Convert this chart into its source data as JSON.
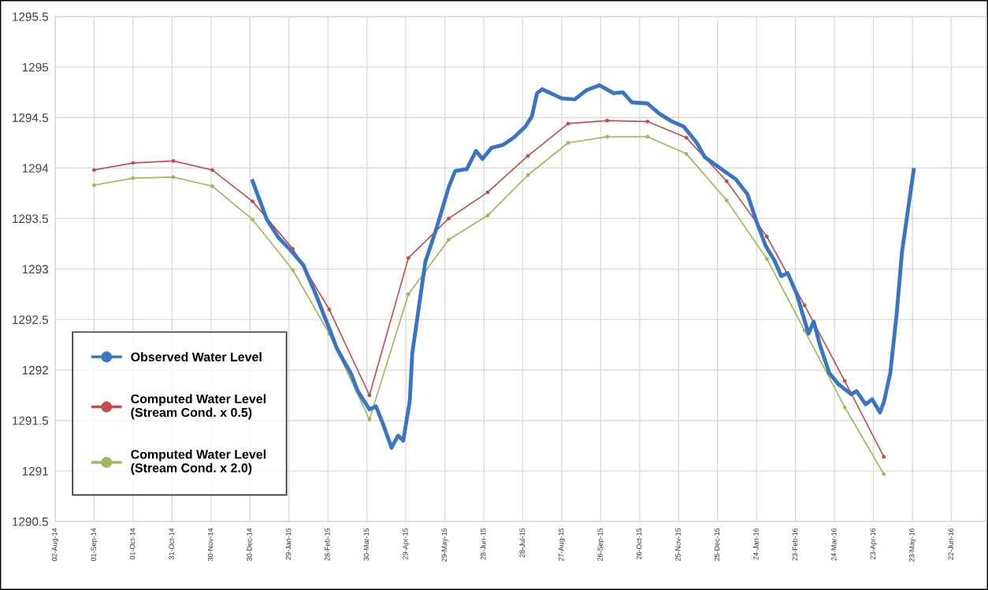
{
  "chart_data": {
    "type": "line",
    "ylim": [
      1290.5,
      1295.5
    ],
    "yticks": [
      1290.5,
      1291,
      1291.5,
      1292,
      1292.5,
      1293,
      1293.5,
      1294,
      1294.5,
      1295,
      1295.5
    ],
    "xlim": [
      "2014-08-02",
      "2016-07-19"
    ],
    "xticks": [
      {
        "value": "2014-08-02",
        "label": "02-Aug-14"
      },
      {
        "value": "2014-09-01",
        "label": "01-Sep-14"
      },
      {
        "value": "2014-10-01",
        "label": "01-Oct-14"
      },
      {
        "value": "2014-10-31",
        "label": "31-Oct-14"
      },
      {
        "value": "2014-11-30",
        "label": "30-Nov-14"
      },
      {
        "value": "2014-12-30",
        "label": "30-Dec-14"
      },
      {
        "value": "2015-01-29",
        "label": "29-Jan-15"
      },
      {
        "value": "2015-02-28",
        "label": "28-Feb-15"
      },
      {
        "value": "2015-03-30",
        "label": "30-Mar-15"
      },
      {
        "value": "2015-04-29",
        "label": "29-Apr-15"
      },
      {
        "value": "2015-05-29",
        "label": "29-May-15"
      },
      {
        "value": "2015-06-28",
        "label": "28-Jun-15"
      },
      {
        "value": "2015-07-28",
        "label": "28-Jul-15"
      },
      {
        "value": "2015-08-27",
        "label": "27-Aug-15"
      },
      {
        "value": "2015-09-26",
        "label": "26-Sep-15"
      },
      {
        "value": "2015-10-26",
        "label": "26-Oct-15"
      },
      {
        "value": "2015-11-25",
        "label": "25-Nov-15"
      },
      {
        "value": "2015-12-25",
        "label": "25-Dec-15"
      },
      {
        "value": "2016-01-24",
        "label": "24-Jan-16"
      },
      {
        "value": "2016-02-23",
        "label": "23-Feb-16"
      },
      {
        "value": "2016-03-24",
        "label": "24-Mar-16"
      },
      {
        "value": "2016-04-23",
        "label": "23-Apr-16"
      },
      {
        "value": "2016-05-23",
        "label": "23-May-16"
      },
      {
        "value": "2016-06-22",
        "label": "22-Jun-16"
      }
    ],
    "grid": true,
    "legend": "bottom left",
    "series": [
      {
        "name": "Observed Water Level",
        "color": "#3a75c4",
        "marker": "none",
        "x": [
          "2015-01-01",
          "2015-01-12",
          "2015-01-21",
          "2015-01-30",
          "2015-02-09",
          "2015-02-18",
          "2015-03-02",
          "2015-03-07",
          "2015-03-18",
          "2015-03-23",
          "2015-04-01",
          "2015-04-06",
          "2015-04-11",
          "2015-04-18",
          "2015-04-23",
          "2015-04-27",
          "2015-05-02",
          "2015-05-04",
          "2015-05-14",
          "2015-05-23",
          "2015-06-01",
          "2015-06-06",
          "2015-06-15",
          "2015-06-22",
          "2015-06-27",
          "2015-07-04",
          "2015-07-13",
          "2015-07-21",
          "2015-07-30",
          "2015-08-04",
          "2015-08-08",
          "2015-08-12",
          "2015-08-27",
          "2015-09-06",
          "2015-09-15",
          "2015-09-25",
          "2015-10-06",
          "2015-10-13",
          "2015-10-20",
          "2015-11-01",
          "2015-11-10",
          "2015-11-20",
          "2015-11-29",
          "2015-12-09",
          "2015-12-15",
          "2015-12-29",
          "2016-01-08",
          "2016-01-17",
          "2016-01-24",
          "2016-01-31",
          "2016-02-07",
          "2016-02-12",
          "2016-02-17",
          "2016-02-24",
          "2016-03-04",
          "2016-03-08",
          "2016-03-13",
          "2016-03-20",
          "2016-03-27",
          "2016-04-06",
          "2016-04-10",
          "2016-04-17",
          "2016-04-22",
          "2016-04-28",
          "2016-05-01",
          "2016-05-06",
          "2016-05-11",
          "2016-05-15",
          "2016-05-20",
          "2016-05-24"
        ],
        "values": [
          1293.87,
          1293.49,
          1293.31,
          1293.19,
          1293.04,
          1292.77,
          1292.38,
          1292.21,
          1291.96,
          1291.79,
          1291.61,
          1291.64,
          1291.48,
          1291.23,
          1291.35,
          1291.3,
          1291.69,
          1292.17,
          1293.07,
          1293.42,
          1293.81,
          1293.97,
          1293.99,
          1294.17,
          1294.09,
          1294.2,
          1294.23,
          1294.3,
          1294.41,
          1294.51,
          1294.74,
          1294.78,
          1294.69,
          1294.68,
          1294.77,
          1294.82,
          1294.74,
          1294.75,
          1294.65,
          1294.64,
          1294.54,
          1294.46,
          1294.41,
          1294.25,
          1294.11,
          1293.98,
          1293.89,
          1293.74,
          1293.47,
          1293.23,
          1293.08,
          1292.93,
          1292.96,
          1292.75,
          1292.36,
          1292.48,
          1292.24,
          1291.97,
          1291.86,
          1291.76,
          1291.79,
          1291.66,
          1291.71,
          1291.58,
          1291.68,
          1291.97,
          1292.57,
          1293.17,
          1293.62,
          1293.98
        ]
      },
      {
        "name": "Computed Water Level\n(Stream Cond. x 0.5)",
        "color": "#c0504d",
        "marker": "circle",
        "x": [
          "2014-09-01",
          "2014-10-01",
          "2014-11-01",
          "2014-12-01",
          "2015-01-01",
          "2015-02-01",
          "2015-03-01",
          "2015-04-01",
          "2015-05-01",
          "2015-06-01",
          "2015-07-01",
          "2015-08-01",
          "2015-09-01",
          "2015-10-01",
          "2015-11-01",
          "2015-12-01",
          "2016-01-01",
          "2016-02-01",
          "2016-03-01",
          "2016-04-01",
          "2016-05-01"
        ],
        "values": [
          1293.98,
          1294.05,
          1294.07,
          1293.98,
          1293.67,
          1293.2,
          1292.6,
          1291.75,
          1293.11,
          1293.5,
          1293.76,
          1294.12,
          1294.44,
          1294.47,
          1294.46,
          1294.3,
          1293.87,
          1293.32,
          1292.64,
          1291.89,
          1291.14
        ]
      },
      {
        "name": "Computed Water Level\n(Stream Cond. x 2.0)",
        "color": "#9bbb59",
        "marker": "circle",
        "x": [
          "2014-09-01",
          "2014-10-01",
          "2014-11-01",
          "2014-12-01",
          "2015-01-01",
          "2015-02-01",
          "2015-03-01",
          "2015-04-01",
          "2015-05-01",
          "2015-06-01",
          "2015-07-01",
          "2015-08-01",
          "2015-09-01",
          "2015-10-01",
          "2015-11-01",
          "2015-12-01",
          "2016-01-01",
          "2016-02-01",
          "2016-03-01",
          "2016-04-01",
          "2016-05-01"
        ],
        "values": [
          1293.83,
          1293.9,
          1293.91,
          1293.82,
          1293.49,
          1292.99,
          1292.36,
          1291.51,
          1292.75,
          1293.29,
          1293.53,
          1293.93,
          1294.25,
          1294.31,
          1294.31,
          1294.14,
          1293.68,
          1293.1,
          1292.39,
          1291.63,
          1290.97
        ]
      }
    ]
  }
}
